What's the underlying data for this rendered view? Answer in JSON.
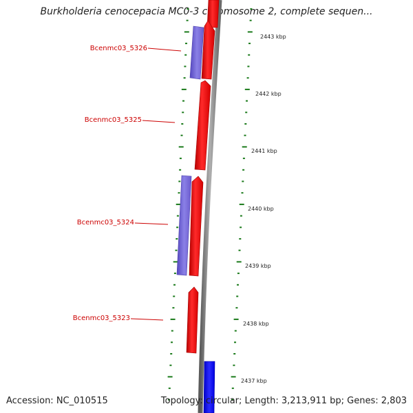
{
  "title": "Burkholderia cenocepacia MC0-3 chromosome 2, complete sequen...",
  "footer": {
    "accession": "Accession: NC_010515",
    "topology": "Topology: circular; Length: 3,213,911 bp; Genes: 2,803"
  },
  "ticks": [
    "2443 kbp",
    "2442 kbp",
    "2441 kbp",
    "2440 kbp",
    "2439 kbp",
    "2438 kbp",
    "2437 kbp"
  ],
  "gene_labels": [
    "Bcenmc03_5326",
    "Bcenmc03_5325",
    "Bcenmc03_5324",
    "Bcenmc03_5323"
  ],
  "colors": {
    "forward_strand": "#ff0000",
    "reverse_strand": "#6a5acd",
    "other_feature": "#0000ff",
    "label": "#cc0000",
    "tick_mark": "#1a7a1a",
    "backbone": "#808080"
  }
}
